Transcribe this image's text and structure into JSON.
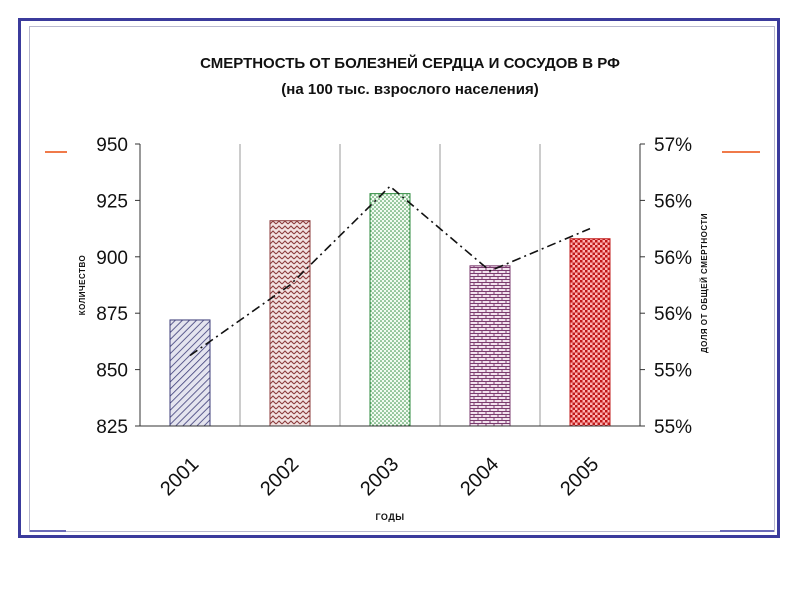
{
  "colors": {
    "frame_outer": "#3b3b9c",
    "frame_inner": "#b9b9cf",
    "accent": "#f07a4a",
    "bar_2001": "#3c3c78",
    "bar_2002": "#8b3a3a",
    "bar_2003": "#2e8b3e",
    "bar_2004": "#7a3a6e",
    "bar_2005": "#c01818"
  },
  "chart_data": {
    "type": "bar",
    "title": "СМЕРТНОСТЬ ОТ БОЛЕЗНЕЙ СЕРДЦА И СОСУДОВ В РФ",
    "subtitle": "(на 100 тыс. взрослого населения)",
    "xlabel": "годы",
    "ylabel": "количество",
    "y2label": "доля от общей смертности",
    "categories": [
      "2001",
      "2002",
      "2003",
      "2004",
      "2005"
    ],
    "values": [
      872,
      916,
      928,
      896,
      908
    ],
    "ylim": [
      825,
      950
    ],
    "yticks": [
      "950",
      "925",
      "900",
      "875",
      "850",
      "825"
    ],
    "secondary": {
      "type": "line",
      "style": "dash-dot",
      "ylim": [
        55.0,
        57.0
      ],
      "yticks": [
        "57%",
        "56%",
        "56%",
        "56%",
        "55%",
        "55%"
      ],
      "values": [
        55.5,
        56.0,
        56.7,
        56.1,
        56.4
      ]
    },
    "grid": "vertical",
    "legend": "none"
  }
}
